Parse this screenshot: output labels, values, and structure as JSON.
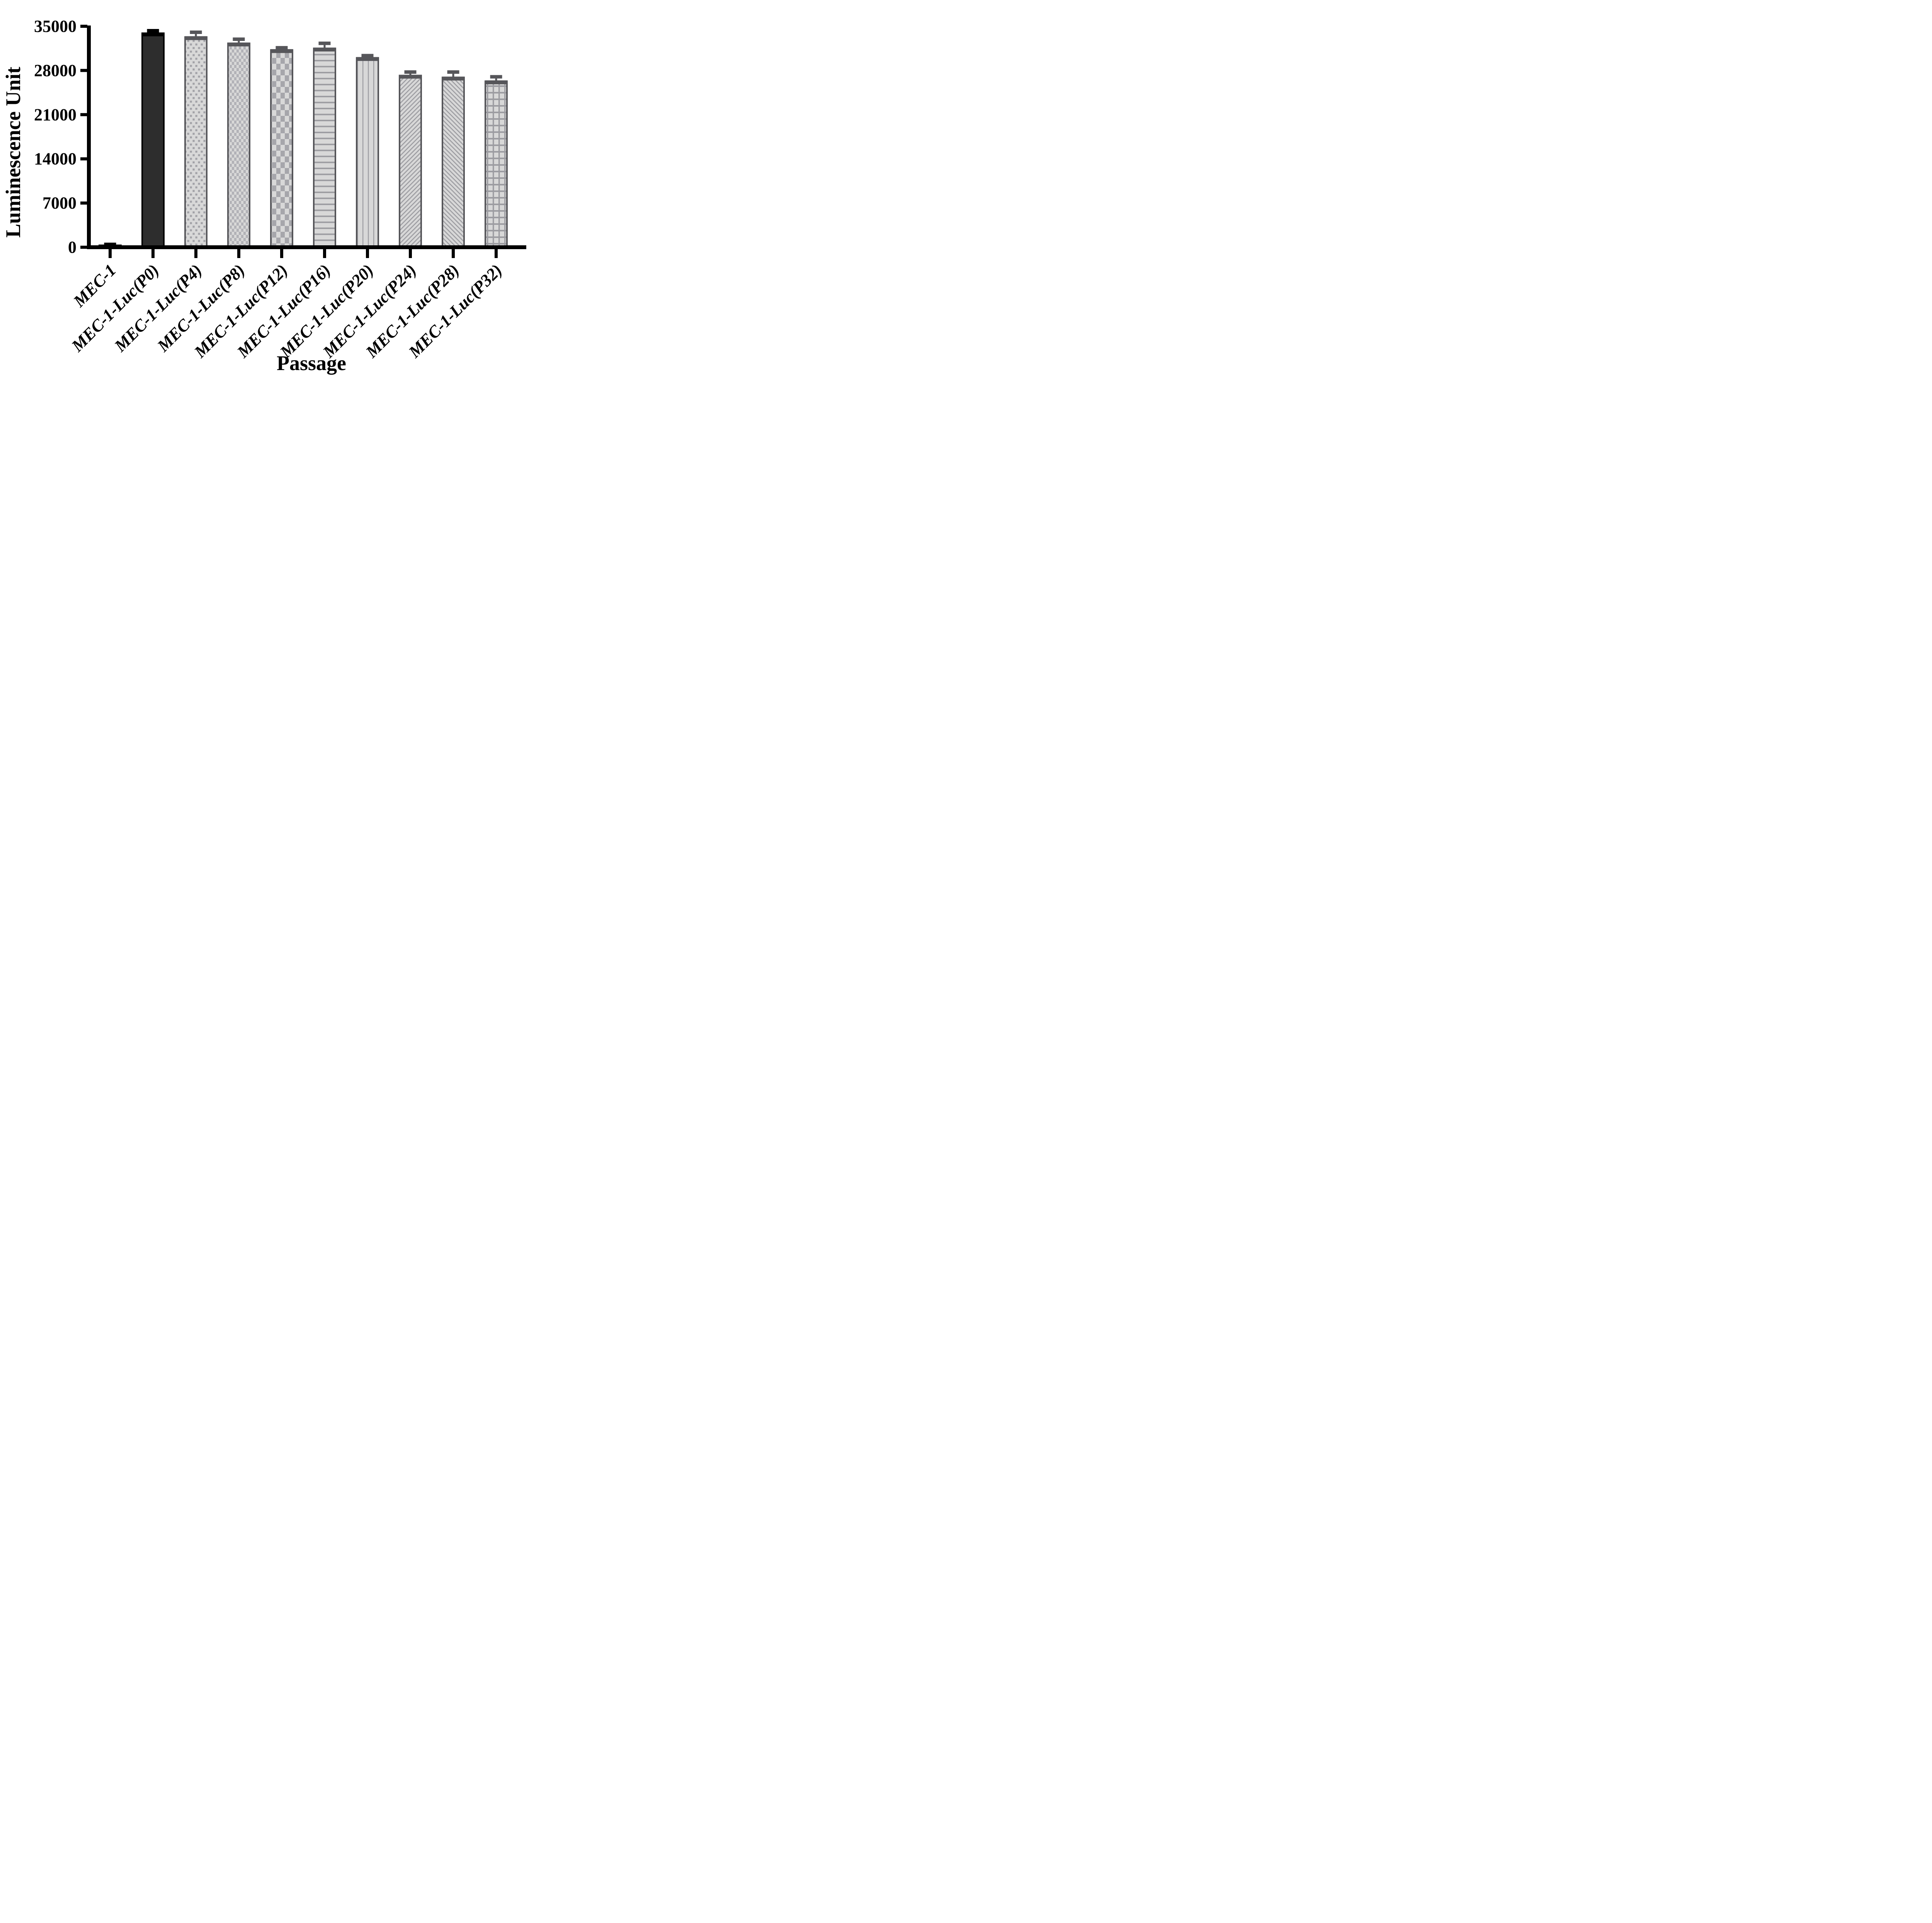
{
  "chart_data": {
    "type": "bar",
    "title": "",
    "xlabel": "Passage",
    "ylabel": "Luminescence Unit",
    "ylim": [
      0,
      35000
    ],
    "yticks": [
      0,
      7000,
      14000,
      21000,
      28000,
      35000
    ],
    "ytick_labels": [
      "0",
      "7000",
      "14000",
      "21000",
      "28000",
      "35000"
    ],
    "grid": false,
    "legend_position": "none",
    "categories": [
      "MEC-1",
      "MEC-1-Luc(P0)",
      "MEC-1-Luc(P4)",
      "MEC-1-Luc(P8)",
      "MEC-1-Luc(P12)",
      "MEC-1-Luc(P16)",
      "MEC-1-Luc(P20)",
      "MEC-1-Luc(P24)",
      "MEC-1-Luc(P28)",
      "MEC-1-Luc(P32)"
    ],
    "series": [
      {
        "name": "Luminescence Unit",
        "values": [
          300,
          33900,
          33300,
          32300,
          31250,
          31500,
          30000,
          27200,
          26900,
          26300
        ],
        "errors_plus": [
          150,
          400,
          750,
          650,
          350,
          800,
          350,
          550,
          850,
          700
        ]
      }
    ],
    "bar_patterns": [
      "solid-black",
      "solid-dark",
      "dots",
      "checker-fine",
      "checker-coarse",
      "horizontal-lines",
      "vertical-lines",
      "diagonal-up",
      "diagonal-down",
      "grid"
    ],
    "bar_edge_colors": [
      "#000000",
      "#000000",
      "#56565a",
      "#56565a",
      "#56565a",
      "#56565a",
      "#56565a",
      "#56565a",
      "#56565a",
      "#56565a"
    ],
    "colors": {
      "black": "#000000",
      "dark_fill": "#2d2d2d",
      "pattern_bg": "#d8d8d8",
      "dot_color": "#a2a2a7",
      "checker_fine": "#b2b2b7",
      "checker_coarse": "#a6a6ab",
      "line_color": "#9c9ca1",
      "border_gray": "#56565a",
      "axis_color": "#000000",
      "background": "#ffffff"
    }
  }
}
